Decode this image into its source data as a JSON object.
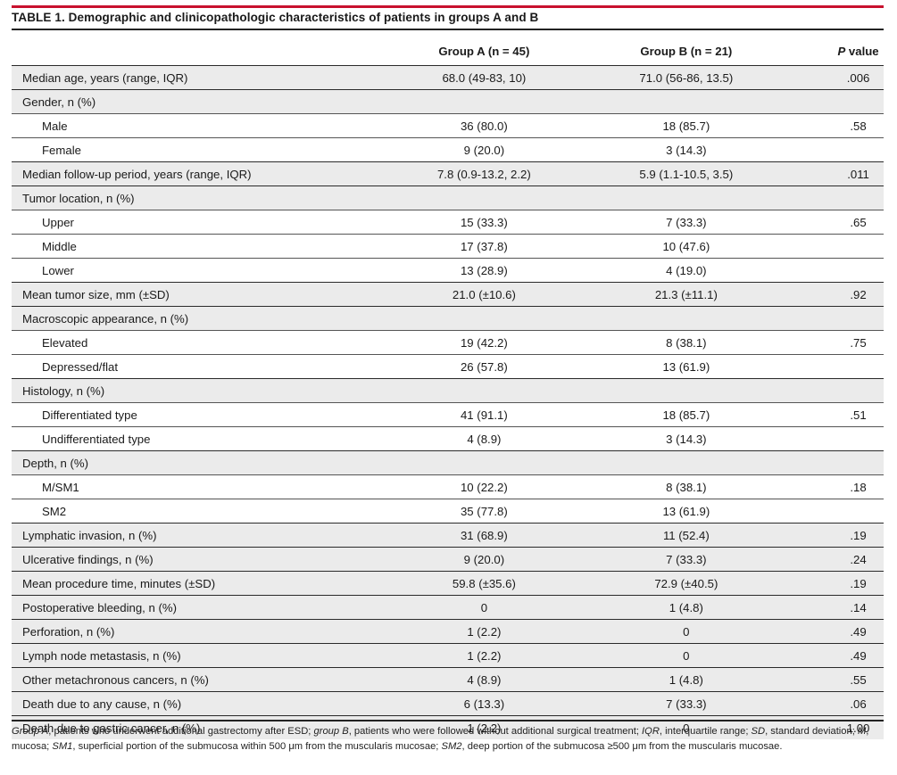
{
  "title": "TABLE 1. Demographic and clinicopathologic characteristics of patients in groups A and B",
  "headers": {
    "group_a": "Group A (n = 45)",
    "group_b": "Group B (n = 21)",
    "p_italic": "P",
    "p_rest": " value"
  },
  "rows": [
    {
      "label": "Median age, years (range, IQR)",
      "a": "68.0 (49-83, 10)",
      "b": "71.0 (56-86, 13.5)",
      "p": ".006"
    },
    {
      "label": "Gender, n (%)",
      "a": "",
      "b": "",
      "p": ""
    },
    {
      "label": "Male",
      "a": "36 (80.0)",
      "b": "18 (85.7)",
      "p": ".58"
    },
    {
      "label": "Female",
      "a": "9 (20.0)",
      "b": "3 (14.3)",
      "p": ""
    },
    {
      "label": "Median follow-up period, years (range, IQR)",
      "a": "7.8 (0.9-13.2, 2.2)",
      "b": "5.9 (1.1-10.5, 3.5)",
      "p": ".011"
    },
    {
      "label": "Tumor location, n (%)",
      "a": "",
      "b": "",
      "p": ""
    },
    {
      "label": "Upper",
      "a": "15 (33.3)",
      "b": "7 (33.3)",
      "p": ".65"
    },
    {
      "label": "Middle",
      "a": "17 (37.8)",
      "b": "10 (47.6)",
      "p": ""
    },
    {
      "label": "Lower",
      "a": "13 (28.9)",
      "b": "4 (19.0)",
      "p": ""
    },
    {
      "label": "Mean tumor size, mm (±SD)",
      "a": "21.0 (±10.6)",
      "b": "21.3 (±11.1)",
      "p": ".92"
    },
    {
      "label": "Macroscopic appearance, n (%)",
      "a": "",
      "b": "",
      "p": ""
    },
    {
      "label": "Elevated",
      "a": "19 (42.2)",
      "b": "8 (38.1)",
      "p": ".75"
    },
    {
      "label": "Depressed/flat",
      "a": "26 (57.8)",
      "b": "13 (61.9)",
      "p": ""
    },
    {
      "label": "Histology, n (%)",
      "a": "",
      "b": "",
      "p": ""
    },
    {
      "label": "Differentiated type",
      "a": "41 (91.1)",
      "b": "18 (85.7)",
      "p": ".51"
    },
    {
      "label": "Undifferentiated type",
      "a": "4 (8.9)",
      "b": "3 (14.3)",
      "p": ""
    },
    {
      "label": "Depth, n (%)",
      "a": "",
      "b": "",
      "p": ""
    },
    {
      "label": "M/SM1",
      "a": "10 (22.2)",
      "b": "8 (38.1)",
      "p": ".18"
    },
    {
      "label": "SM2",
      "a": "35 (77.8)",
      "b": "13 (61.9)",
      "p": ""
    },
    {
      "label": "Lymphatic invasion, n (%)",
      "a": "31 (68.9)",
      "b": "11 (52.4)",
      "p": ".19"
    },
    {
      "label": "Ulcerative findings, n (%)",
      "a": "9 (20.0)",
      "b": "7 (33.3)",
      "p": ".24"
    },
    {
      "label": "Mean procedure time, minutes (±SD)",
      "a": "59.8 (±35.6)",
      "b": "72.9 (±40.5)",
      "p": ".19"
    },
    {
      "label": "Postoperative bleeding, n (%)",
      "a": "0",
      "b": "1 (4.8)",
      "p": ".14"
    },
    {
      "label": "Perforation, n (%)",
      "a": "1 (2.2)",
      "b": "0",
      "p": ".49"
    },
    {
      "label": "Lymph node metastasis, n (%)",
      "a": "1 (2.2)",
      "b": "0",
      "p": ".49"
    },
    {
      "label": "Other metachronous cancers, n (%)",
      "a": "4 (8.9)",
      "b": "1 (4.8)",
      "p": ".55"
    },
    {
      "label": "Death due to any cause, n (%)",
      "a": "6 (13.3)",
      "b": "7 (33.3)",
      "p": ".06"
    },
    {
      "label": "Death due to gastric cancer, n (%)",
      "a": "1 (2.2)",
      "b": "0",
      "p": "1.00"
    }
  ],
  "footnote": [
    {
      "t": "Group A",
      "i": true
    },
    {
      "t": ", patients who underwent additional gastrectomy after ESD; ",
      "i": false
    },
    {
      "t": "group B",
      "i": true
    },
    {
      "t": ", patients who were followed without additional surgical treatment; ",
      "i": false
    },
    {
      "t": "IQR",
      "i": true
    },
    {
      "t": ", interquartile range; ",
      "i": false
    },
    {
      "t": "SD",
      "i": true
    },
    {
      "t": ", standard deviation; ",
      "i": false
    },
    {
      "t": "M",
      "i": true
    },
    {
      "t": ", mucosa; ",
      "i": false
    },
    {
      "t": "SM1",
      "i": true
    },
    {
      "t": ", superficial portion of the submucosa within 500 μm from the muscularis mucosae; ",
      "i": false
    },
    {
      "t": "SM2",
      "i": true
    },
    {
      "t": ", deep portion of the submucosa ≥500 μm from the muscularis mucosae.",
      "i": false
    }
  ]
}
